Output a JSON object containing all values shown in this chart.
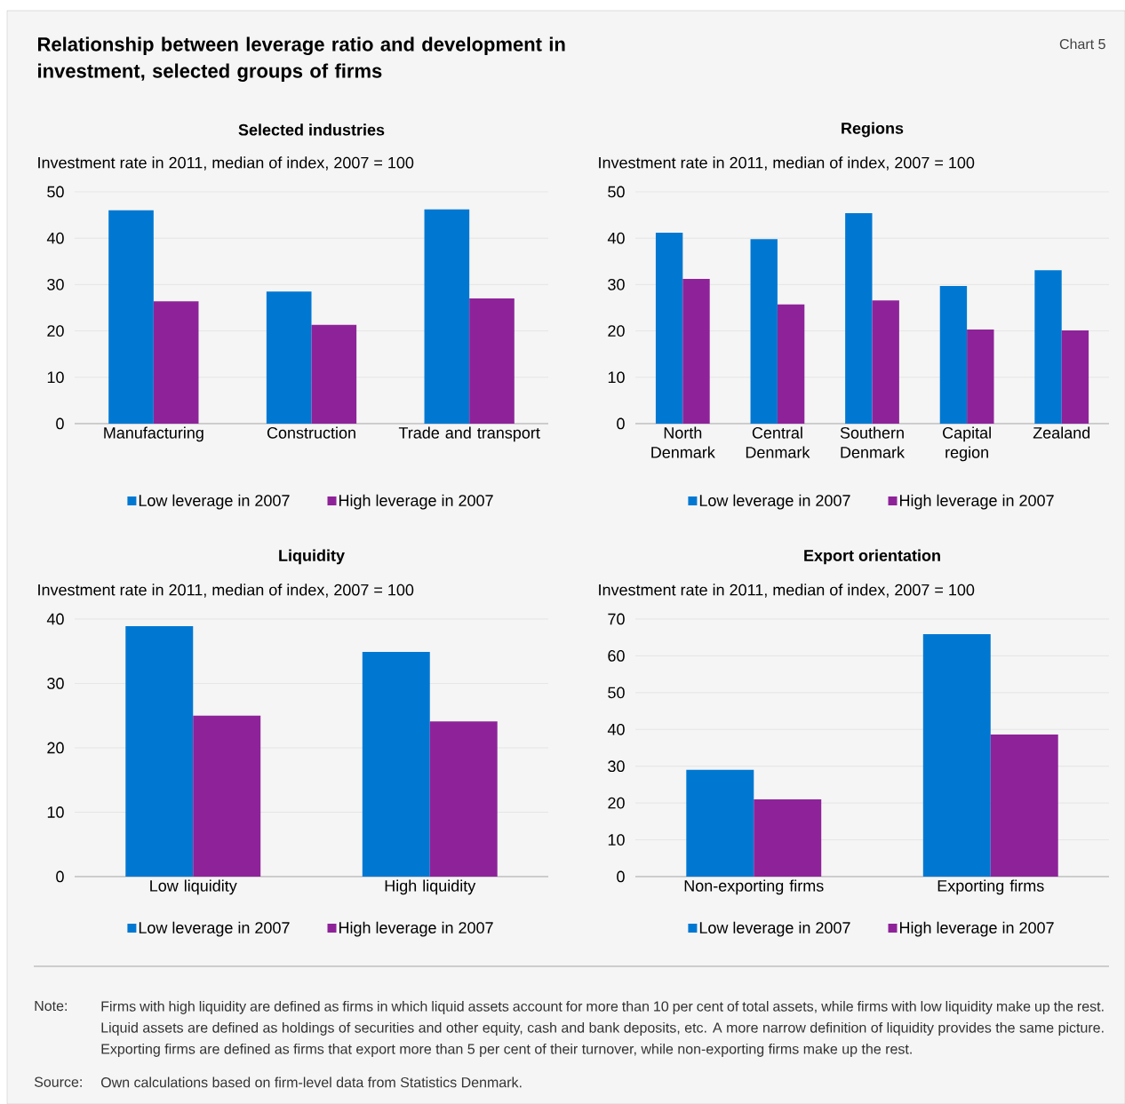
{
  "chart_data": [
    {
      "type": "other",
      "title": "Relationship between leverage ratio and development in investment, selected groups of firms",
      "annotations": [
        "Chart 5"
      ]
    },
    {
      "type": "bar",
      "title": "Selected industries",
      "ylabel": "Investment rate in 2011, median of index, 2007 = 100",
      "categories": [
        "Manufacturing",
        "Construction",
        "Trade and transport"
      ],
      "series": [
        {
          "name": "Low leverage in 2007",
          "color": "#0078d2",
          "values": [
            46.0,
            28.5,
            46.2
          ]
        },
        {
          "name": "High leverage in 2007",
          "color": "#8e2399",
          "values": [
            26.4,
            21.3,
            27.0
          ]
        }
      ],
      "ylim": [
        0,
        50
      ],
      "yticks": [
        0,
        10,
        20,
        30,
        40,
        50
      ],
      "grid": "y",
      "legend": "bottom"
    },
    {
      "type": "bar",
      "title": "Regions",
      "ylabel": "Investment rate in 2011, median of index, 2007 = 100",
      "categories": [
        "North Denmark",
        "Central Denmark",
        "Southern Denmark",
        "Capital region",
        "Zealand"
      ],
      "series": [
        {
          "name": "Low leverage in 2007",
          "color": "#0078d2",
          "values": [
            41.2,
            39.8,
            45.4,
            29.7,
            33.1
          ]
        },
        {
          "name": "High leverage in 2007",
          "color": "#8e2399",
          "values": [
            31.2,
            25.7,
            26.6,
            20.3,
            20.1
          ]
        }
      ],
      "ylim": [
        0,
        50
      ],
      "yticks": [
        0,
        10,
        20,
        30,
        40,
        50
      ],
      "grid": "y",
      "legend": "bottom"
    },
    {
      "type": "bar",
      "title": "Liquidity",
      "ylabel": "Investment rate in 2011, median of index, 2007 = 100",
      "categories": [
        "Low liquidity",
        "High liquidity"
      ],
      "series": [
        {
          "name": "Low leverage in 2007",
          "color": "#0078d2",
          "values": [
            38.9,
            34.9
          ]
        },
        {
          "name": "High leverage in 2007",
          "color": "#8e2399",
          "values": [
            25.0,
            24.1
          ]
        }
      ],
      "ylim": [
        0,
        40
      ],
      "yticks": [
        0,
        10,
        20,
        30,
        40
      ],
      "grid": "y",
      "legend": "bottom"
    },
    {
      "type": "bar",
      "title": "Export orientation",
      "ylabel": "Investment rate in 2011, median of index, 2007 = 100",
      "categories": [
        "Non-exporting firms",
        "Exporting firms"
      ],
      "series": [
        {
          "name": "Low leverage in 2007",
          "color": "#0078d2",
          "values": [
            29.0,
            65.9
          ]
        },
        {
          "name": "High leverage in 2007",
          "color": "#8e2399",
          "values": [
            21.0,
            38.6
          ]
        }
      ],
      "ylim": [
        0,
        70
      ],
      "yticks": [
        0,
        10,
        20,
        30,
        40,
        50,
        60,
        70
      ],
      "grid": "y",
      "legend": "bottom"
    },
    {
      "type": "other",
      "annotations": [
        "Note:",
        "Firms with high liquidity are defined as firms in which liquid assets account for more than 10 per cent of total assets, while firms with low liquidity make up the rest. Liquid assets are defined as holdings of securities and other equity, cash and bank deposits, etc. A more narrow definition of liquidity provides the same picture. Exporting firms are defined as firms that export more than 5 per cent of their turnover, while non-exporting firms make up the rest.",
        "Source:",
        "Own calculations based on firm-level data from Statistics Denmark."
      ]
    }
  ]
}
